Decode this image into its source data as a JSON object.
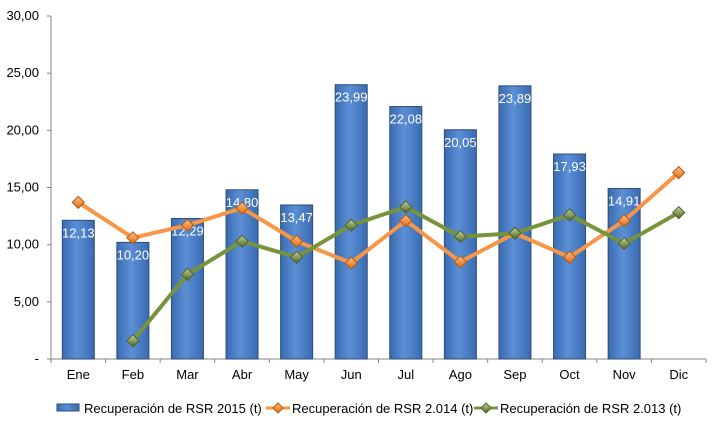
{
  "chart_data": {
    "type": "bar",
    "categories": [
      "Ene",
      "Feb",
      "Mar",
      "Abr",
      "May",
      "Jun",
      "Jul",
      "Ago",
      "Sep",
      "Oct",
      "Nov",
      "Dic"
    ],
    "ylim": [
      0,
      30
    ],
    "yticks": [
      0,
      5,
      10,
      15,
      20,
      25,
      30
    ],
    "ytick_labels": [
      "-",
      "5,00",
      "10,00",
      "15,00",
      "20,00",
      "25,00",
      "30,00"
    ],
    "grid": false,
    "legend_position": "bottom",
    "series": [
      {
        "name": "Recuperación de RSR 2015 (t)",
        "kind": "bar",
        "color": "#4F81BD",
        "values": [
          12.13,
          10.2,
          12.29,
          14.8,
          13.47,
          23.99,
          22.08,
          20.05,
          23.89,
          17.93,
          14.91,
          null
        ],
        "data_labels": [
          "12,13",
          "10,20",
          "12,29",
          "14,80",
          "13,47",
          "23,99",
          "22,08",
          "20,05",
          "23,89",
          "17,93",
          "14,91",
          ""
        ]
      },
      {
        "name": "Recuperación de RSR 2.014 (t)",
        "kind": "line",
        "color": "#F79646",
        "values": [
          13.7,
          10.6,
          11.7,
          13.2,
          10.3,
          8.4,
          12.1,
          8.5,
          11.0,
          8.9,
          12.1,
          16.3
        ]
      },
      {
        "name": "Recuperación de RSR 2.013 (t)",
        "kind": "line",
        "color": "#77933C",
        "values": [
          null,
          1.6,
          7.4,
          10.3,
          8.9,
          11.7,
          13.3,
          10.7,
          11.0,
          12.6,
          10.1,
          12.8
        ]
      }
    ]
  }
}
